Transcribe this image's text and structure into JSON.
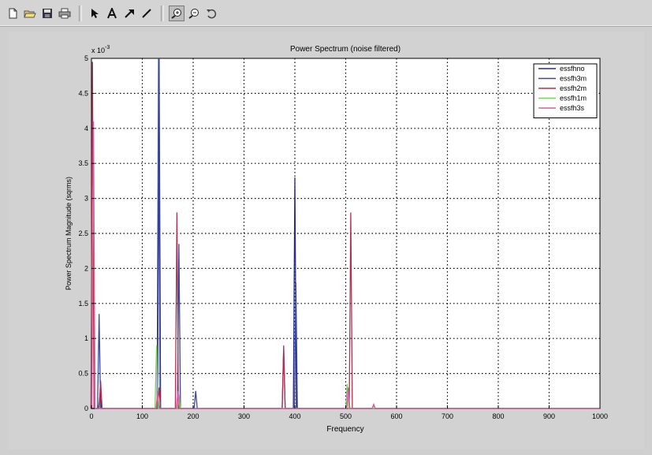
{
  "toolbar": {
    "buttons": [
      {
        "name": "new-figure-button",
        "icon": "new-file-icon"
      },
      {
        "name": "open-file-button",
        "icon": "open-folder-icon"
      },
      {
        "name": "save-button",
        "icon": "save-disk-icon"
      },
      {
        "name": "print-button",
        "icon": "printer-icon"
      },
      {
        "name": "edit-plot-button",
        "icon": "arrow-pointer-icon"
      },
      {
        "name": "insert-text-button",
        "icon": "text-A-icon"
      },
      {
        "name": "insert-arrow-button",
        "icon": "arrow-icon"
      },
      {
        "name": "insert-line-button",
        "icon": "line-icon"
      },
      {
        "name": "zoom-in-button",
        "icon": "zoom-in-icon"
      },
      {
        "name": "zoom-out-button",
        "icon": "zoom-out-icon"
      },
      {
        "name": "rotate-button",
        "icon": "rotate-icon"
      }
    ]
  },
  "chart_data": {
    "type": "line",
    "title": "Power Spectrum (noise filtered)",
    "xlabel": "Frequency",
    "ylabel": "Power Spectrum Magnitude (sqrms)",
    "y_exponent_label": "x 10",
    "y_exponent": "-3",
    "xlim": [
      0,
      1000
    ],
    "ylim": [
      0,
      5
    ],
    "xticks": [
      0,
      100,
      200,
      300,
      400,
      500,
      600,
      700,
      800,
      900,
      1000
    ],
    "yticks": [
      0,
      0.5,
      1,
      1.5,
      2,
      2.5,
      3,
      3.5,
      4,
      4.5,
      5
    ],
    "grid": true,
    "legend_position": "top-right",
    "series": [
      {
        "name": "essfhno",
        "color": "#2a2a8a",
        "peaks": [
          [
            133,
            5.0
          ],
          [
            400,
            3.3
          ],
          [
            17,
            0.2
          ],
          [
            170,
            0.1
          ]
        ]
      },
      {
        "name": "essfh3m",
        "color": "#3a4a9a",
        "peaks": [
          [
            15,
            1.35
          ],
          [
            132,
            5.0
          ],
          [
            172,
            2.35
          ],
          [
            205,
            0.25
          ],
          [
            378,
            0.85
          ],
          [
            402,
            1.8
          ],
          [
            505,
            0.25
          ]
        ]
      },
      {
        "name": "essfh2m",
        "color": "#b03050",
        "peaks": [
          [
            2,
            4.95
          ],
          [
            18,
            0.4
          ],
          [
            133,
            0.3
          ],
          [
            168,
            2.8
          ],
          [
            378,
            0.9
          ],
          [
            510,
            2.8
          ],
          [
            555,
            0.05
          ]
        ]
      },
      {
        "name": "essfh1m",
        "color": "#7ad05a",
        "peaks": [
          [
            128,
            0.9
          ],
          [
            172,
            0.2
          ],
          [
            503,
            0.35
          ]
        ]
      },
      {
        "name": "essfh3s",
        "color": "#d060a0",
        "peaks": [
          [
            4,
            4.1
          ],
          [
            130,
            0.25
          ],
          [
            170,
            0.25
          ],
          [
            505,
            0.3
          ],
          [
            555,
            0.06
          ]
        ]
      }
    ]
  }
}
